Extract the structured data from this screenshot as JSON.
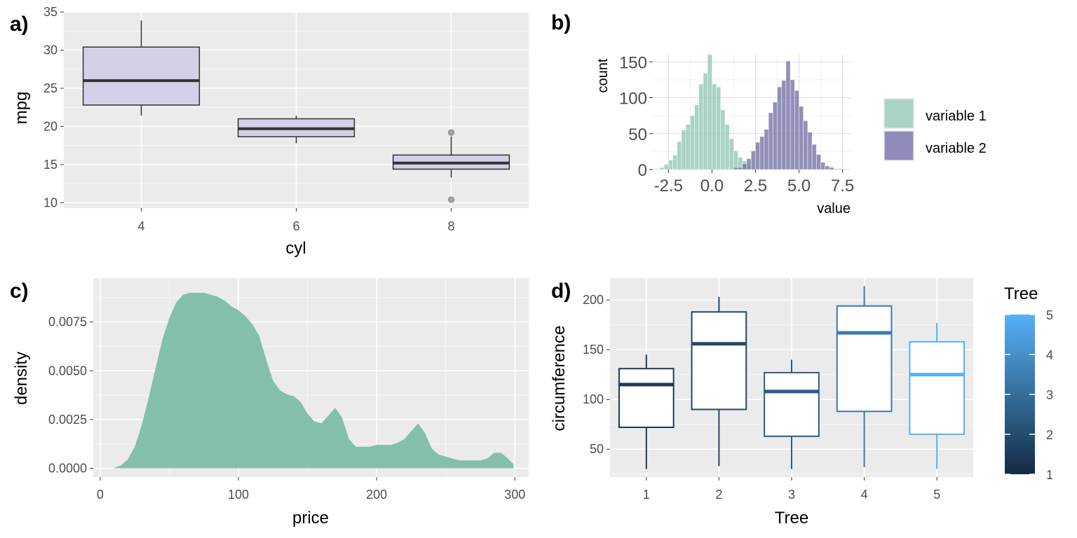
{
  "chart_data": [
    {
      "panel_label": "a)",
      "type": "box",
      "xlabel": "cyl",
      "ylabel": "mpg",
      "categories": [
        "4",
        "6",
        "8"
      ],
      "ylim": [
        9.3,
        35.1
      ],
      "yticks": [
        10,
        15,
        20,
        25,
        30,
        35
      ],
      "grid": true,
      "fill_color": "#d4d0e8",
      "boxes": [
        {
          "category": "4",
          "lower_whisker": 21.4,
          "q1": 22.8,
          "median": 26.0,
          "q3": 30.4,
          "upper_whisker": 33.9,
          "outliers": []
        },
        {
          "category": "6",
          "lower_whisker": 17.8,
          "q1": 18.65,
          "median": 19.7,
          "q3": 21.0,
          "upper_whisker": 21.4,
          "outliers": []
        },
        {
          "category": "8",
          "lower_whisker": 13.3,
          "q1": 14.4,
          "median": 15.2,
          "q3": 16.25,
          "upper_whisker": 18.7,
          "outliers": [
            19.2,
            10.4
          ]
        }
      ]
    },
    {
      "panel_label": "b)",
      "type": "bar",
      "subtype": "histogram",
      "xlabel": "value",
      "ylabel": "count",
      "xlim": [
        -3.4,
        8.0
      ],
      "ylim": [
        0,
        160
      ],
      "xticks": [
        -2.5,
        0.0,
        2.5,
        5.0,
        7.5
      ],
      "xtick_labels": [
        "-2.5",
        "0.0",
        "2.5",
        "5.0",
        "7.5"
      ],
      "yticks": [
        0,
        50,
        100,
        150
      ],
      "bin_start": -3.25,
      "bin_width": 0.25,
      "grid": true,
      "legend_position": "right",
      "series": [
        {
          "name": "variable 1",
          "color": "#8cc4b1",
          "values": [
            1,
            3,
            7,
            13,
            20,
            39,
            55,
            63,
            75,
            90,
            119,
            134,
            160,
            119,
            115,
            83,
            63,
            43,
            26,
            17,
            12,
            3,
            2,
            0,
            0,
            0,
            0,
            0,
            0,
            0,
            0,
            0,
            0,
            0,
            0,
            0,
            0,
            0,
            0,
            0,
            0,
            0,
            0,
            0
          ]
        },
        {
          "name": "variable 2",
          "color": "#6d6aa1",
          "values": [
            0,
            0,
            0,
            0,
            0,
            0,
            0,
            0,
            0,
            0,
            0,
            0,
            0,
            0,
            0,
            0,
            1,
            1,
            3,
            3,
            8,
            15,
            26,
            38,
            46,
            56,
            79,
            94,
            115,
            124,
            151,
            125,
            110,
            88,
            68,
            52,
            35,
            21,
            10,
            5,
            3,
            1,
            1,
            0
          ]
        }
      ]
    },
    {
      "panel_label": "c)",
      "type": "area",
      "subtype": "density",
      "xlabel": "price",
      "ylabel": "density",
      "xlim": [
        -5,
        310
      ],
      "ylim": [
        -0.00045,
        0.00975
      ],
      "xticks": [
        0,
        100,
        200,
        300
      ],
      "yticks": [
        0,
        0.0025,
        0.005,
        0.0075
      ],
      "ytick_labels": [
        "0.0000",
        "0.0025",
        "0.0050",
        "0.0075"
      ],
      "grid": true,
      "fill_color": "#7bbba8",
      "x": [
        10,
        15,
        20,
        25,
        30,
        35,
        40,
        45,
        50,
        55,
        60,
        65,
        70,
        75,
        80,
        85,
        90,
        95,
        100,
        105,
        110,
        115,
        120,
        125,
        130,
        135,
        140,
        145,
        150,
        155,
        160,
        165,
        170,
        175,
        180,
        185,
        190,
        195,
        200,
        205,
        210,
        215,
        220,
        225,
        230,
        235,
        240,
        245,
        250,
        255,
        260,
        265,
        270,
        275,
        280,
        285,
        290,
        295,
        299
      ],
      "y": [
        2e-05,
        0.00015,
        0.00045,
        0.0011,
        0.0022,
        0.0036,
        0.0051,
        0.0066,
        0.0077,
        0.0085,
        0.0089,
        0.009,
        0.009,
        0.009,
        0.0089,
        0.0088,
        0.0086,
        0.0083,
        0.0081,
        0.0078,
        0.0074,
        0.0068,
        0.0056,
        0.0045,
        0.004,
        0.0038,
        0.0037,
        0.0034,
        0.0028,
        0.0024,
        0.0023,
        0.0027,
        0.0031,
        0.0026,
        0.0015,
        0.0011,
        0.0011,
        0.0011,
        0.0012,
        0.0012,
        0.0012,
        0.0013,
        0.0015,
        0.0019,
        0.0023,
        0.0018,
        0.001,
        0.0007,
        0.0006,
        0.0005,
        0.0004,
        0.0004,
        0.0004,
        0.0004,
        0.0005,
        0.0008,
        0.0008,
        0.0005,
        0.0002
      ]
    },
    {
      "panel_label": "d)",
      "type": "box",
      "xlabel": "Tree",
      "ylabel": "circumference",
      "categories": [
        "1",
        "2",
        "3",
        "4",
        "5"
      ],
      "ylim": [
        22,
        222
      ],
      "yticks": [
        50,
        100,
        150,
        200
      ],
      "grid": true,
      "legend_title": "Tree",
      "legend_position": "right",
      "colorbar_ticks": [
        "5",
        "4",
        "3",
        "2",
        "1"
      ],
      "colorbar_range": [
        "#132b43",
        "#56b1f7"
      ],
      "boxes": [
        {
          "category": "1",
          "color": "#1d3a58",
          "lower_whisker": 30,
          "q1": 72,
          "median": 115,
          "q3": 131,
          "upper_whisker": 145
        },
        {
          "category": "2",
          "color": "#23486b",
          "lower_whisker": 33,
          "q1": 90,
          "median": 156,
          "q3": 188,
          "upper_whisker": 203
        },
        {
          "category": "3",
          "color": "#2b5a87",
          "lower_whisker": 30,
          "q1": 63,
          "median": 108,
          "q3": 127,
          "upper_whisker": 140
        },
        {
          "category": "4",
          "color": "#3a79b4",
          "lower_whisker": 32,
          "q1": 88,
          "median": 167,
          "q3": 194,
          "upper_whisker": 214
        },
        {
          "category": "5",
          "color": "#56b1f7",
          "lower_whisker": 30,
          "q1": 65,
          "median": 125,
          "q3": 158,
          "upper_whisker": 177
        }
      ]
    }
  ]
}
